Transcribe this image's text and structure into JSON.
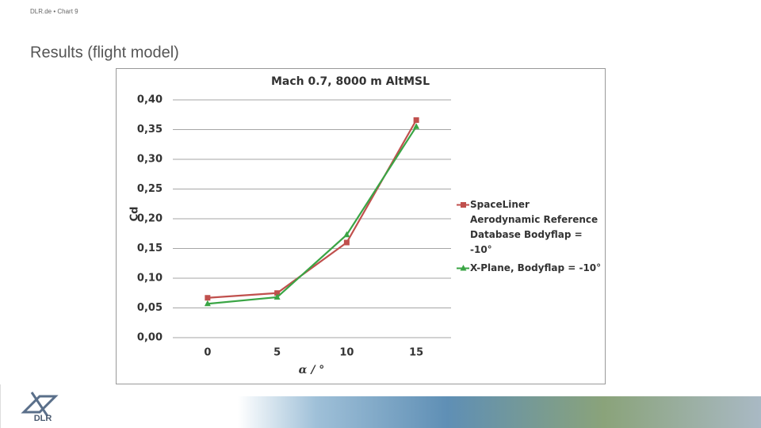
{
  "header": {
    "breadcrumb": "DLR.de  •  Chart 9",
    "title": "Results (flight model)",
    "logo": "DLR"
  },
  "chart_data": {
    "type": "line",
    "title": "Mach 0.7, 8000 m AltMSL",
    "x_label": "α / °",
    "y_label": "Cd",
    "categories": [
      "0",
      "5",
      "10",
      "15"
    ],
    "series": [
      {
        "name": "SpaceLiner Aerodynamic Reference Database Bodyflap = -10°",
        "color": "#c0504d",
        "marker": "square",
        "values": [
          0.067,
          0.075,
          0.16,
          0.366
        ]
      },
      {
        "name": "X-Plane, Bodyflap = -10°",
        "color": "#3aa545",
        "marker": "triangle",
        "values": [
          0.057,
          0.068,
          0.173,
          0.355
        ]
      }
    ],
    "ylim": [
      0,
      0.4
    ],
    "yticks": [
      {
        "value": 0,
        "label": "0,00"
      },
      {
        "value": 0.05,
        "label": "0,05"
      },
      {
        "value": 0.1,
        "label": "0,10"
      },
      {
        "value": 0.15,
        "label": "0,15"
      },
      {
        "value": 0.2,
        "label": "0,20"
      },
      {
        "value": 0.25,
        "label": "0,25"
      },
      {
        "value": 0.3,
        "label": "0,30"
      },
      {
        "value": 0.35,
        "label": "0,35"
      },
      {
        "value": 0.4,
        "label": "0,40"
      }
    ],
    "grid": true,
    "legend": "right"
  }
}
